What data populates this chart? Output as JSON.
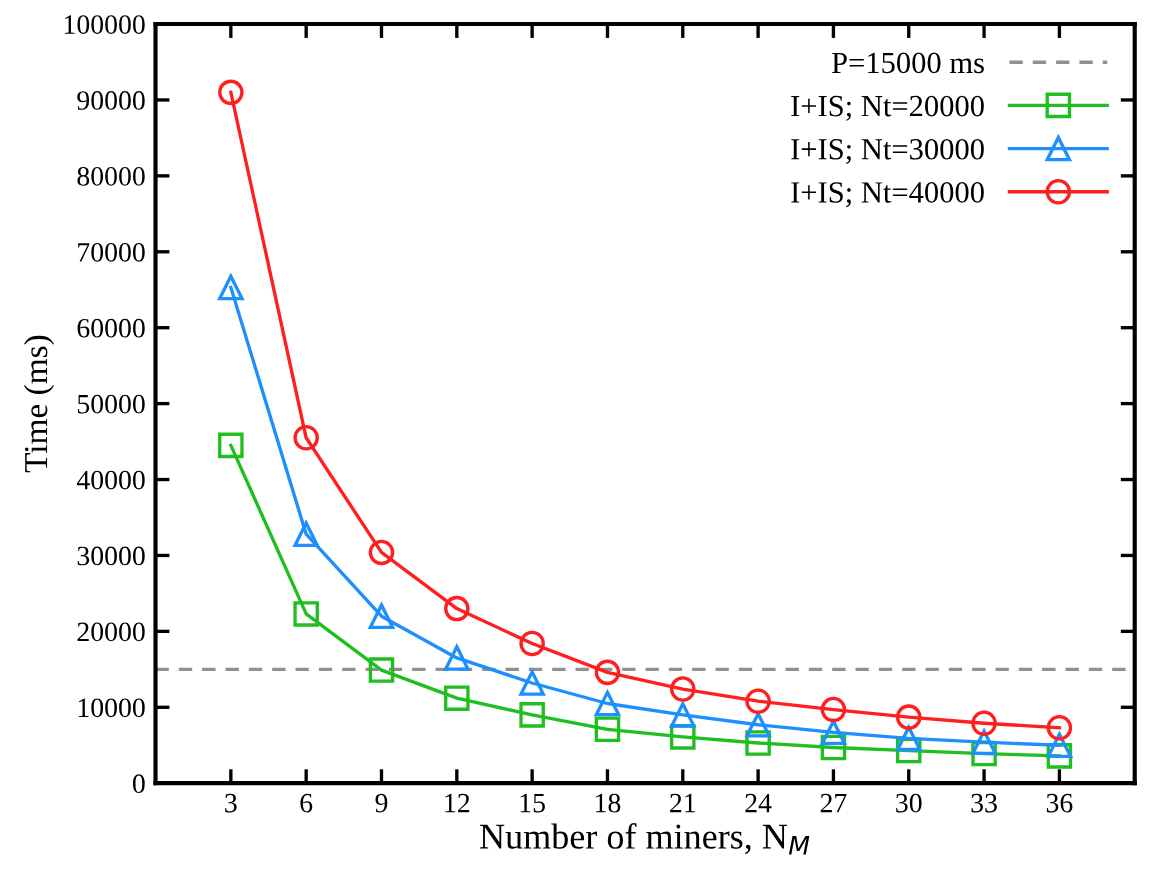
{
  "chart_data": {
    "type": "line",
    "xlabel": "Number of miners, N$_{M}$",
    "ylabel": "Time (ms)",
    "x": [
      3,
      6,
      9,
      12,
      15,
      18,
      21,
      24,
      27,
      30,
      33,
      36
    ],
    "xlim": [
      0,
      39
    ],
    "xticks": [
      3,
      6,
      9,
      12,
      15,
      18,
      21,
      24,
      27,
      30,
      33,
      36
    ],
    "ylim": [
      0,
      100000
    ],
    "yticks": [
      0,
      10000,
      20000,
      30000,
      40000,
      50000,
      60000,
      70000,
      80000,
      90000,
      100000
    ],
    "grid": false,
    "legend": "top right",
    "line_style": "solid",
    "ref_lines": [
      {
        "axis": "y",
        "value": 15000,
        "label": "P=15000 ms",
        "color": "#909090",
        "line_style": "dashed"
      }
    ],
    "series": [
      {
        "name": "I+IS; Nt=20000",
        "color": "#1fbf1f",
        "marker": "square",
        "values": [
          44500,
          22300,
          14900,
          11200,
          9000,
          7100,
          6100,
          5300,
          4700,
          4300,
          3900,
          3600
        ]
      },
      {
        "name": "I+IS; Nt=30000",
        "color": "#1e8fff",
        "marker": "triangle",
        "values": [
          65300,
          32800,
          22000,
          16500,
          13200,
          10500,
          9000,
          7700,
          6700,
          5900,
          5400,
          5000
        ]
      },
      {
        "name": "I+IS; Nt=40000",
        "color": "#ff1f1f",
        "marker": "circle",
        "values": [
          91000,
          45500,
          30400,
          23000,
          18400,
          14600,
          12400,
          10800,
          9700,
          8700,
          7900,
          7300
        ]
      }
    ]
  }
}
